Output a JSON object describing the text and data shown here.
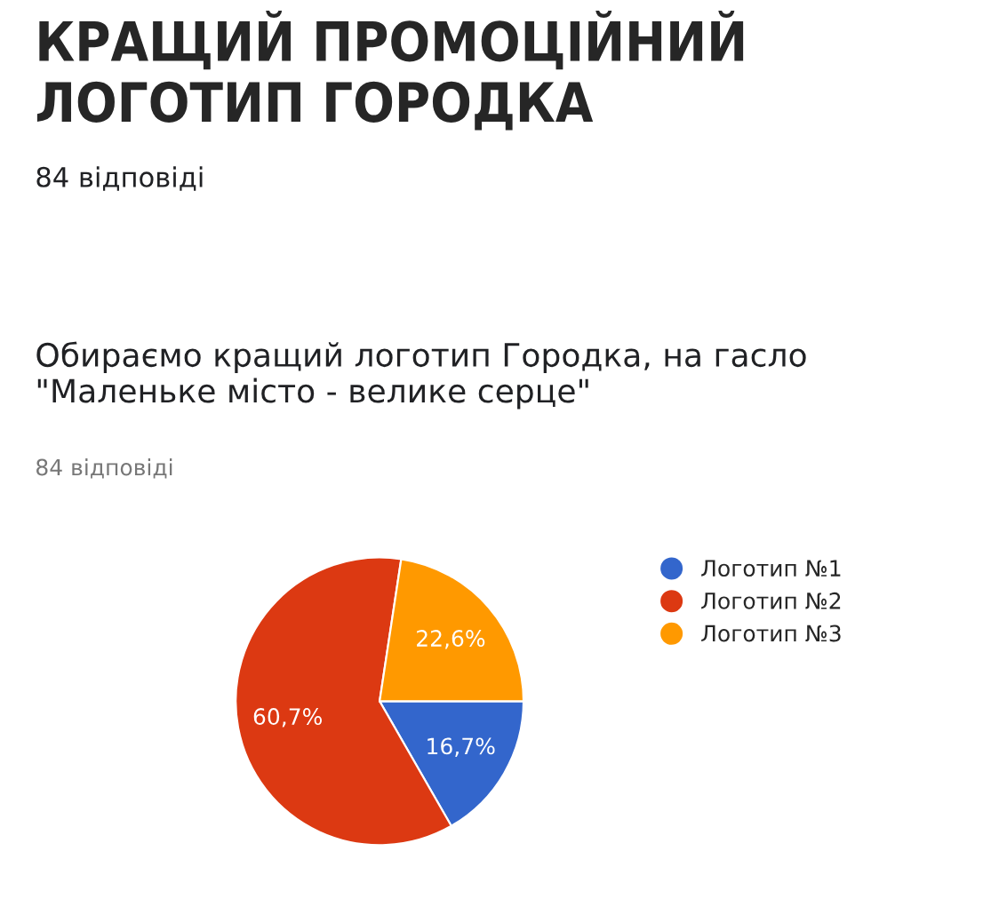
{
  "chart_data": {
    "type": "pie",
    "title": "КРАЩИЙ ПРОМОЦІЙНИЙ ЛОГОТИП ГОРОДКА",
    "subtitle": "84 відповіді",
    "annotations": [
      "Обираємо кращий логотип Городка, на гасло \"Маленьке місто - велике серце\"",
      "84 відповіді"
    ],
    "categories": [
      "Логотип №1",
      "Логотип №2",
      "Логотип №3"
    ],
    "values": [
      16.7,
      60.7,
      22.6
    ],
    "colors": [
      "#3366cc",
      "#dc3912",
      "#ff9900"
    ],
    "value_labels": [
      "16,7%",
      "60,7%",
      "22,6%"
    ],
    "legend": "right"
  }
}
